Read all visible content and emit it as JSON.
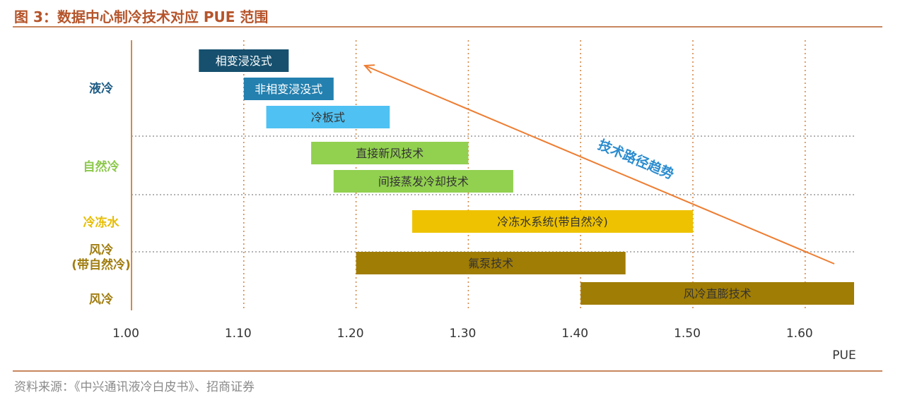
{
  "figure_title": "图 3：数据中心制冷技术对应 PUE 范围",
  "source": "资料来源：《中兴通讯液冷白皮书》、招商证券",
  "colors": {
    "title": "#b5542a",
    "rule": "#c8865e",
    "axis": "#d4894a",
    "trend": "#ee7d31",
    "trend_label": "#2b8ccf",
    "group_liquid": "#1f5c85",
    "group_natural": "#8cc84b",
    "group_chilled": "#e7bd00",
    "group_air": "#a07d10"
  },
  "chart_data": {
    "type": "bar",
    "subtype": "range",
    "xlabel": "PUE",
    "xlim": [
      1.0,
      1.65
    ],
    "xticks": [
      "1.00",
      "1.10",
      "1.20",
      "1.30",
      "1.40",
      "1.50",
      "1.60"
    ],
    "grid": "vertical dotted lines at ticks",
    "groups": [
      {
        "label": "液冷",
        "color": "#1f5c85"
      },
      {
        "label": "自然冷",
        "color": "#8cc84b"
      },
      {
        "label": "冷冻水",
        "color": "#e7bd00"
      },
      {
        "label": "风冷\n(带自然冷)",
        "color": "#a07d10"
      },
      {
        "label": "风冷",
        "color": "#a07d10"
      }
    ],
    "bars": [
      {
        "label": "相变浸没式",
        "start": 1.06,
        "end": 1.14,
        "group": 0,
        "color": "#16506e",
        "text_color": "#ffffff"
      },
      {
        "label": "非相变浸没式",
        "start": 1.1,
        "end": 1.18,
        "group": 0,
        "color": "#2380af",
        "text_color": "#ffffff"
      },
      {
        "label": "冷板式",
        "start": 1.12,
        "end": 1.23,
        "group": 0,
        "color": "#4fc1f2",
        "text_color": "#333333"
      },
      {
        "label": "直接新风技术",
        "start": 1.16,
        "end": 1.3,
        "group": 1,
        "color": "#92d050",
        "text_color": "#333333"
      },
      {
        "label": "间接蒸发冷却技术",
        "start": 1.18,
        "end": 1.34,
        "group": 1,
        "color": "#92d050",
        "text_color": "#333333"
      },
      {
        "label": "冷冻水系统(带自然冷)",
        "start": 1.25,
        "end": 1.5,
        "group": 2,
        "color": "#eec200",
        "text_color": "#333333"
      },
      {
        "label": "氟泵技术",
        "start": 1.2,
        "end": 1.44,
        "group": 3,
        "color": "#a07d04",
        "text_color": "#333333"
      },
      {
        "label": "风冷直膨技术",
        "start": 1.4,
        "end": 1.65,
        "group": 4,
        "color": "#a07d04",
        "text_color": "#333333"
      }
    ],
    "annotation": {
      "label": "技术路径趋势",
      "from": 1.65,
      "to": 1.2
    }
  }
}
